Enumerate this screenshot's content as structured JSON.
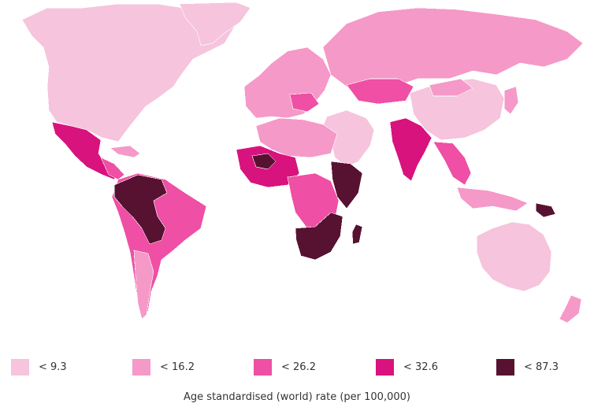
{
  "colors": {
    "class1": "#f6c4dc",
    "class2": "#f599c8",
    "class3": "#ef4fa4",
    "class4": "#d8137e",
    "class5": "#571231"
  },
  "legend": [
    {
      "label": "< 9.3",
      "color": "#f6c4dc"
    },
    {
      "label": "< 16.2",
      "color": "#f599c8"
    },
    {
      "label": "< 26.2",
      "color": "#ef4fa4"
    },
    {
      "label": "< 32.6",
      "color": "#d8137e"
    },
    {
      "label": "< 87.3",
      "color": "#571231"
    }
  ],
  "caption": "Age standardised (world) rate (per 100,000)"
}
